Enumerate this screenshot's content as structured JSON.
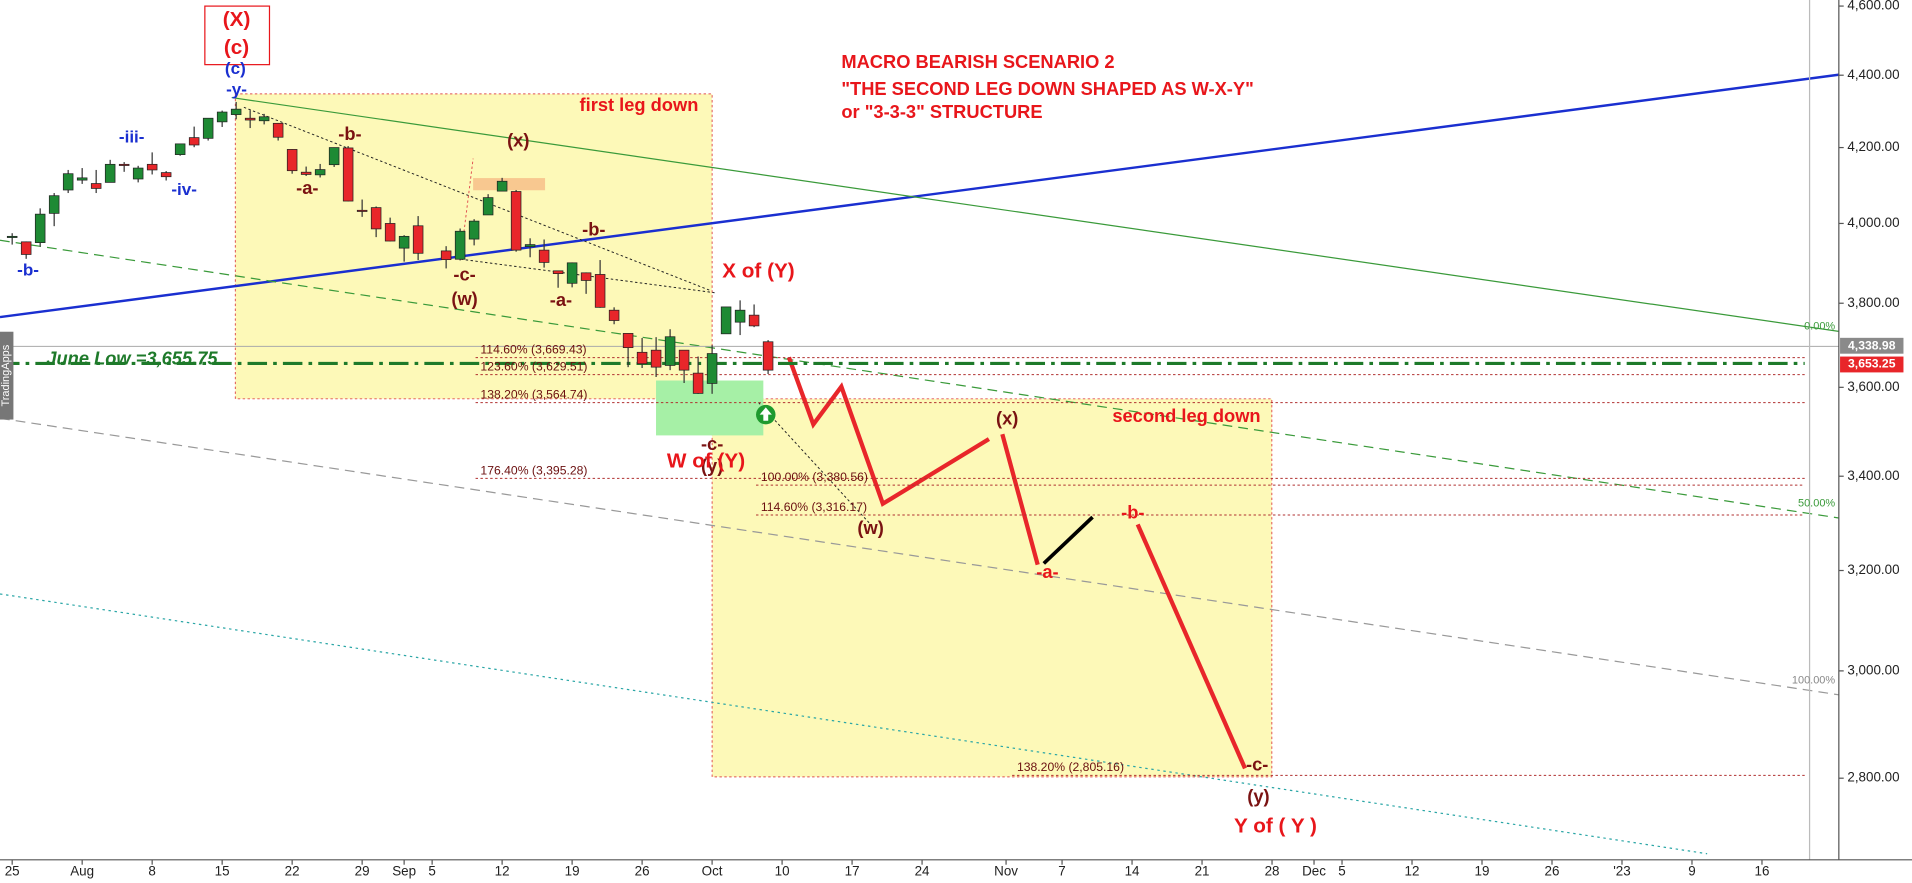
{
  "chart_data": {
    "type": "candlestick",
    "up_color": "#1e8a34",
    "down_color": "#e8262a",
    "log_scale": true,
    "ylim": [
      2661,
      4618
    ],
    "yticks": [
      {
        "value": 4600,
        "label": "4,600.00"
      },
      {
        "value": 4400,
        "label": "4,400.00"
      },
      {
        "value": 4200,
        "label": "4,200.00"
      },
      {
        "value": 4000,
        "label": "4,000.00"
      },
      {
        "value": 3800,
        "label": "3,800.00"
      },
      {
        "value": 3600,
        "label": "3,600.00"
      },
      {
        "value": 3400,
        "label": "3,400.00"
      },
      {
        "value": 3200,
        "label": "3,200.00"
      },
      {
        "value": 3000,
        "label": "3,000.00"
      },
      {
        "value": 2800,
        "label": "2,800.00"
      }
    ],
    "xlim": [
      -0.87,
      128.4
    ],
    "xticks": [
      {
        "value": 0,
        "label": "25"
      },
      {
        "value": 5,
        "label": "Aug"
      },
      {
        "value": 10,
        "label": "8"
      },
      {
        "value": 15,
        "label": "15"
      },
      {
        "value": 20,
        "label": "22"
      },
      {
        "value": 25,
        "label": "29"
      },
      {
        "value": 28,
        "label": "Sep"
      },
      {
        "value": 30,
        "label": "5"
      },
      {
        "value": 35,
        "label": "12"
      },
      {
        "value": 40,
        "label": "19"
      },
      {
        "value": 45,
        "label": "26"
      },
      {
        "value": 50,
        "label": "Oct"
      },
      {
        "value": 55,
        "label": "10"
      },
      {
        "value": 60,
        "label": "17"
      },
      {
        "value": 65,
        "label": "24"
      },
      {
        "value": 71,
        "label": "Nov"
      },
      {
        "value": 75,
        "label": "7"
      },
      {
        "value": 80,
        "label": "14"
      },
      {
        "value": 85,
        "label": "21"
      },
      {
        "value": 90,
        "label": "28"
      },
      {
        "value": 93,
        "label": "Dec"
      },
      {
        "value": 95,
        "label": "5"
      },
      {
        "value": 100,
        "label": "12"
      },
      {
        "value": 105,
        "label": "19"
      },
      {
        "value": 110,
        "label": "26"
      },
      {
        "value": 115,
        "label": "'23"
      },
      {
        "value": 120,
        "label": "9"
      },
      {
        "value": 125,
        "label": "16"
      }
    ],
    "x": [
      0,
      1,
      2,
      3,
      4,
      5,
      6,
      7,
      8,
      9,
      10,
      11,
      12,
      13,
      14,
      15,
      16,
      17,
      18,
      19,
      20,
      21,
      22,
      23,
      24,
      25,
      26,
      27,
      28,
      29,
      31,
      32,
      33,
      34,
      35,
      36,
      37,
      38,
      39,
      40,
      41,
      42,
      43,
      44,
      45,
      46,
      47,
      48,
      49,
      50,
      51,
      52,
      53,
      54
    ],
    "open": [
      3965,
      3953,
      3951,
      4026,
      4087,
      4113,
      4104,
      4107,
      4155,
      4116,
      4155,
      4133,
      4181,
      4227,
      4225,
      4270,
      4290,
      4280,
      4273,
      4266,
      4195,
      4134,
      4127,
      4154,
      4199,
      4034,
      4041,
      4000,
      3937,
      3994,
      3930,
      3909,
      3960,
      4022,
      4084,
      4083,
      3941,
      3932,
      3880,
      3849,
      3875,
      3871,
      3783,
      3727,
      3682,
      3687,
      3651,
      3687,
      3633,
      3609,
      3726,
      3754,
      3771,
      3707
    ],
    "high": [
      3975,
      3954,
      4039,
      4079,
      4140,
      4145,
      4140,
      4167,
      4161,
      4151,
      4187,
      4137,
      4211,
      4257,
      4280,
      4301,
      4325,
      4302,
      4292,
      4267,
      4196,
      4149,
      4156,
      4200,
      4204,
      4062,
      4044,
      4015,
      3970,
      4019,
      3942,
      3987,
      4011,
      4076,
      4119,
      4087,
      3962,
      3959,
      3880,
      3901,
      3876,
      3907,
      3790,
      3727,
      3716,
      3718,
      3737,
      3687,
      3672,
      3699,
      3791,
      3807,
      3797,
      3711
    ],
    "low": [
      3946,
      3910,
      3941,
      3993,
      4079,
      4103,
      4079,
      4107,
      4135,
      4107,
      4128,
      4112,
      4178,
      4201,
      4219,
      4256,
      4277,
      4253,
      4263,
      4219,
      4130,
      4124,
      4120,
      4148,
      4057,
      4017,
      3965,
      3954,
      3903,
      3907,
      3886,
      3906,
      3944,
      4022,
      4083,
      3928,
      3914,
      3888,
      3838,
      3839,
      3823,
      3789,
      3749,
      3647,
      3645,
      3624,
      3640,
      3610,
      3585,
      3585,
      3726,
      3723,
      3742,
      3631
    ],
    "close": [
      3967,
      3921,
      4024,
      4072,
      4130,
      4119,
      4091,
      4155,
      4152,
      4145,
      4140,
      4122,
      4210,
      4207,
      4280,
      4297,
      4305,
      4275,
      4284,
      4228,
      4138,
      4128,
      4141,
      4200,
      4058,
      4031,
      3986,
      3955,
      3967,
      3924,
      3908,
      3980,
      4006,
      4067,
      4110,
      3932,
      3946,
      3901,
      3873,
      3900,
      3856,
      3790,
      3758,
      3693,
      3655,
      3647,
      3719,
      3640,
      3586,
      3679,
      3791,
      3783,
      3745,
      3640
    ],
    "last_price": {
      "value": 3653.25,
      "label": "3,653.25"
    },
    "june_low": {
      "value": 3655.75,
      "label": "June Low =3,655.75"
    },
    "fib_levels": [
      {
        "value": 3669.43,
        "label": "114.60% (3,669.43)"
      },
      {
        "value": 3629.51,
        "label": "123.60% (3,629.51)"
      },
      {
        "value": 3564.74,
        "label": "138.20% (3,564.74)"
      },
      {
        "value": 3395.28,
        "label": "176.40% (3,395.28)"
      },
      {
        "value": 3380.56,
        "label": "100.00% (3,380.56)"
      },
      {
        "value": 3316.17,
        "label": "114.60% (3,316.17)"
      },
      {
        "value": 2805.16,
        "label": "138.20% (2,805.16)"
      }
    ],
    "annotations": [
      "(X)",
      "(c)",
      "(c)",
      "-y-",
      "-iii-",
      "-iv-",
      "-b-",
      "-b-",
      "-a-",
      "(x)",
      "-c-",
      "(w)",
      "-b-",
      "-a-",
      "first leg down",
      "MACRO BEARISH SCENARIO 2",
      "\"THE SECOND LEG DOWN SHAPED AS W-X-Y\"",
      "or \"3-3-3\" STRUCTURE",
      "X of (Y)",
      "-c-",
      "(y)",
      "W of (Y)",
      "second leg down",
      "(x)",
      "(w)",
      "-a-",
      "-b-",
      "-c-",
      "(y)",
      "Y of ( Y )",
      "0.00%",
      "50.00%",
      "100.00%",
      "TradingApps",
      "4,338.98"
    ]
  }
}
